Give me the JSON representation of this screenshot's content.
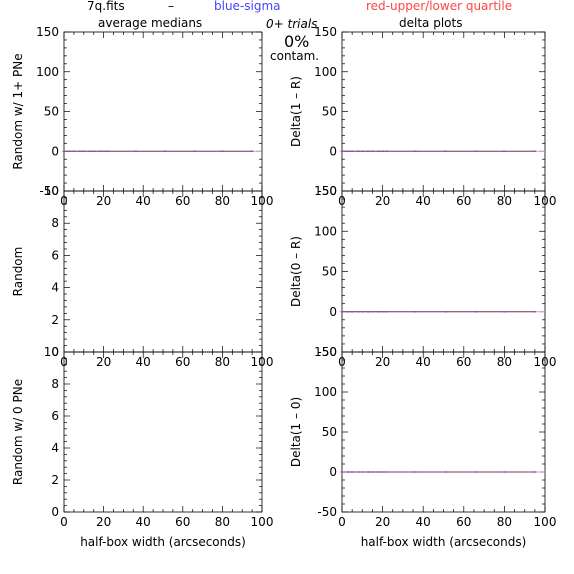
{
  "header": {
    "file": "7q.fits",
    "dash": "–",
    "blue": "blue-sigma",
    "red": "red-upper/lower quartile",
    "left_title": "average medians",
    "right_title": "delta plots",
    "trials": "0+ trials",
    "percent": "0%",
    "contam": "contam."
  },
  "colors": {
    "axis": "#000000",
    "zero_line": "#aaaaaa",
    "blue": "#4444ff",
    "red": "#ff4444",
    "median": "#7a3a6a"
  },
  "chart_data": [
    {
      "id": "p00",
      "type": "line",
      "ylabel": "Random w/ 1+ PNe",
      "xlabel": "",
      "xlim": [
        0,
        100
      ],
      "ylim": [
        -50,
        150
      ],
      "xticks": [
        0,
        20,
        40,
        60,
        80,
        100
      ],
      "yticks": [
        -50,
        0,
        50,
        100,
        150
      ],
      "x": [
        0,
        3,
        5,
        8,
        10,
        13,
        15,
        18,
        20,
        22,
        36,
        51,
        66,
        80,
        95
      ],
      "series": [
        {
          "values": [
            0,
            0,
            0,
            0,
            0,
            0,
            0,
            0,
            0,
            0,
            0,
            0,
            0,
            0,
            0
          ]
        }
      ]
    },
    {
      "id": "p01",
      "type": "line",
      "ylabel": "Delta(1 – R)",
      "xlabel": "",
      "xlim": [
        0,
        100
      ],
      "ylim": [
        -50,
        150
      ],
      "xticks": [
        0,
        20,
        40,
        60,
        80,
        100
      ],
      "yticks": [
        -50,
        0,
        50,
        100,
        150
      ],
      "x": [
        0,
        3,
        5,
        8,
        10,
        13,
        15,
        18,
        20,
        22,
        36,
        51,
        66,
        80,
        95
      ],
      "series": [
        {
          "values": [
            0,
            0,
            0,
            0,
            0,
            0,
            0,
            0,
            0,
            0,
            0,
            0,
            0,
            0,
            0
          ]
        }
      ]
    },
    {
      "id": "p10",
      "type": "line",
      "ylabel": "Random",
      "xlabel": "",
      "xlim": [
        0,
        100
      ],
      "ylim": [
        0,
        10
      ],
      "xticks": [
        0,
        20,
        40,
        60,
        80,
        100
      ],
      "yticks": [
        0,
        2,
        4,
        6,
        8,
        10
      ],
      "x": [],
      "series": []
    },
    {
      "id": "p11",
      "type": "line",
      "ylabel": "Delta(0 – R)",
      "xlabel": "",
      "xlim": [
        0,
        100
      ],
      "ylim": [
        -50,
        150
      ],
      "xticks": [
        0,
        20,
        40,
        60,
        80,
        100
      ],
      "yticks": [
        -50,
        0,
        50,
        100,
        150
      ],
      "x": [
        0,
        3,
        5,
        8,
        10,
        13,
        15,
        18,
        20,
        22,
        36,
        51,
        66,
        80,
        95
      ],
      "series": [
        {
          "values": [
            0,
            0,
            0,
            0,
            0,
            0,
            0,
            0,
            0,
            0,
            0,
            0,
            0,
            0,
            0
          ]
        }
      ]
    },
    {
      "id": "p20",
      "type": "line",
      "ylabel": "Random w/ 0 PNe",
      "xlabel": "half-box width (arcseconds)",
      "xlim": [
        0,
        100
      ],
      "ylim": [
        0,
        10
      ],
      "xticks": [
        0,
        20,
        40,
        60,
        80,
        100
      ],
      "yticks": [
        0,
        2,
        4,
        6,
        8,
        10
      ],
      "x": [],
      "series": []
    },
    {
      "id": "p21",
      "type": "line",
      "ylabel": "Delta(1 – 0)",
      "xlabel": "half-box width (arcseconds)",
      "xlim": [
        0,
        100
      ],
      "ylim": [
        -50,
        150
      ],
      "xticks": [
        0,
        20,
        40,
        60,
        80,
        100
      ],
      "yticks": [
        -50,
        0,
        50,
        100,
        150
      ],
      "x": [
        0,
        3,
        5,
        8,
        10,
        13,
        15,
        18,
        20,
        22,
        36,
        51,
        66,
        80,
        95
      ],
      "series": [
        {
          "values": [
            0,
            0,
            0,
            0,
            0,
            0,
            0,
            0,
            0,
            0,
            0,
            0,
            0,
            0,
            0
          ]
        }
      ]
    }
  ]
}
